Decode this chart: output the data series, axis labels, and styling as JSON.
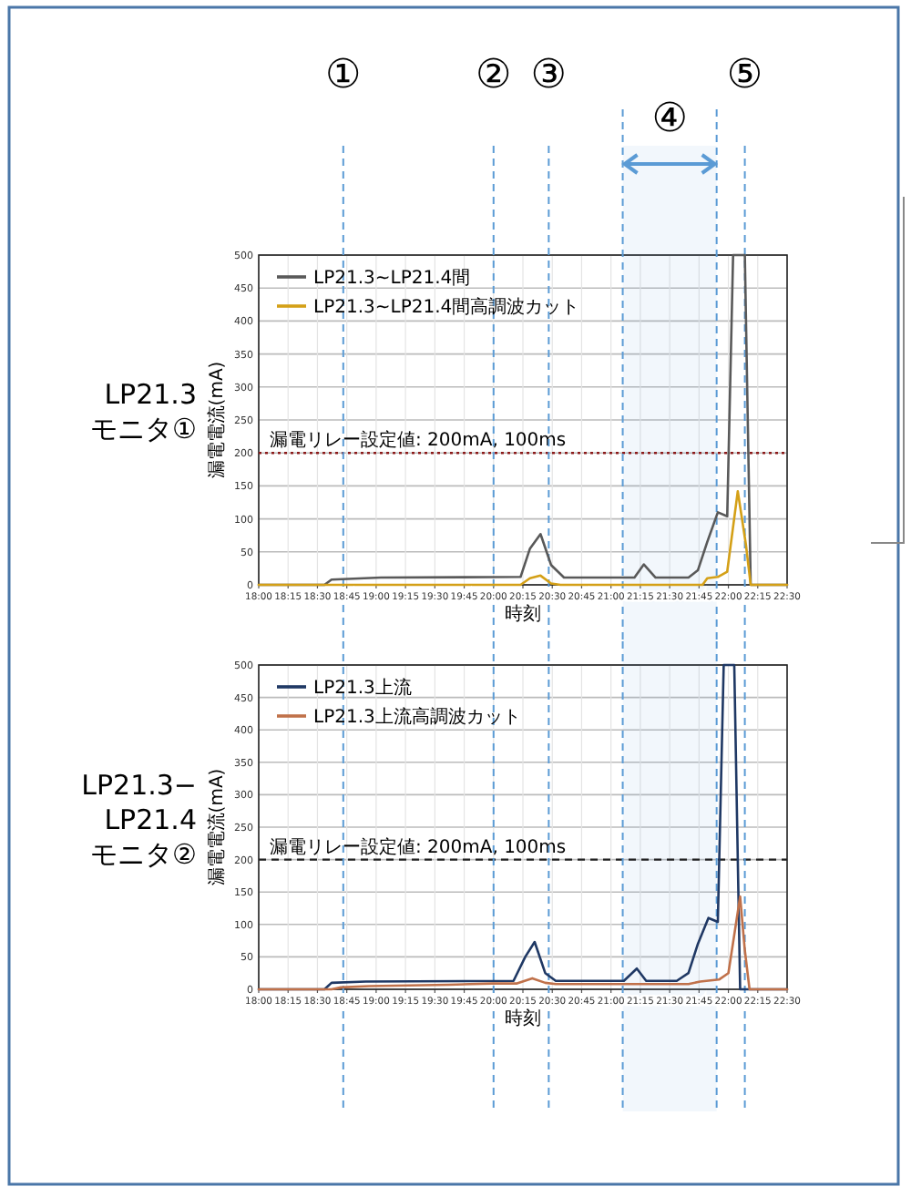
{
  "chart_data": [
    {
      "type": "line",
      "xlabel": "時刻",
      "ylabel": "漏電電流(mA)",
      "annotations": [
        "LP21.3 モニタ①"
      ],
      "xlim": [
        18,
        22.5
      ],
      "ylim": [
        0,
        500
      ],
      "yticks": [
        0,
        50,
        100,
        150,
        200,
        250,
        300,
        350,
        400,
        450,
        500
      ],
      "xticks": [
        {
          "value": 18,
          "label": "18:00"
        },
        {
          "value": 18.25,
          "label": "18:15"
        },
        {
          "value": 18.5,
          "label": "18:30"
        },
        {
          "value": 18.75,
          "label": "18:45"
        },
        {
          "value": 19,
          "label": "19:00"
        },
        {
          "value": 19.25,
          "label": "19:15"
        },
        {
          "value": 19.5,
          "label": "19:30"
        },
        {
          "value": 19.75,
          "label": "19:45"
        },
        {
          "value": 20,
          "label": "20:00"
        },
        {
          "value": 20.25,
          "label": "20:15"
        },
        {
          "value": 20.5,
          "label": "20:30"
        },
        {
          "value": 20.75,
          "label": "20:45"
        },
        {
          "value": 21,
          "label": "21:00"
        },
        {
          "value": 21.25,
          "label": "21:15"
        },
        {
          "value": 21.5,
          "label": "21:30"
        },
        {
          "value": 21.75,
          "label": "21:45"
        },
        {
          "value": 22,
          "label": "22:00"
        },
        {
          "value": 22.25,
          "label": "22:15"
        },
        {
          "value": 22.5,
          "label": "22:30"
        }
      ],
      "grid": true,
      "legend": "top left",
      "series": [
        {
          "name": "LP21.3~LP21.4間",
          "color": "#595959",
          "x": [
            18,
            18.56,
            18.62,
            19.04,
            20.23,
            20.31,
            20.4,
            20.49,
            20.6,
            21.2,
            21.28,
            21.38,
            21.66,
            21.74,
            21.82,
            21.91,
            21.99,
            22.04,
            22.14,
            22.19,
            22.5
          ],
          "values": [
            0,
            0,
            8,
            11,
            12,
            55,
            77,
            30,
            11,
            11,
            31,
            11,
            11,
            22,
            65,
            110,
            104,
            500,
            500,
            0,
            0
          ]
        },
        {
          "name": "LP21.3~LP21.4間高調波カット",
          "color": "#d4a017",
          "x": [
            18,
            20.23,
            20.31,
            20.4,
            20.49,
            20.57,
            21.78,
            21.82,
            21.91,
            21.99,
            22.08,
            22.15,
            22.19,
            22.5
          ],
          "values": [
            0,
            0,
            10,
            14,
            2,
            0,
            0,
            10,
            12,
            20,
            142,
            60,
            0,
            0
          ]
        }
      ],
      "ref_lines": [
        {
          "axis": "y",
          "value": 200,
          "label": "漏電リレー設定値: 200mA, 100ms",
          "color": "#8b1a1a",
          "line_style": "dotted"
        },
        {
          "axis": "x",
          "value": 18.72,
          "label": "①",
          "color": "#5b9bd5",
          "line_style": "dashed"
        },
        {
          "axis": "x",
          "value": 20,
          "label": "②",
          "color": "#5b9bd5",
          "line_style": "dashed"
        },
        {
          "axis": "x",
          "value": 20.47,
          "label": "③",
          "color": "#5b9bd5",
          "line_style": "dashed"
        },
        {
          "axis": "x",
          "value": 22.14,
          "label": "⑤",
          "color": "#5b9bd5",
          "line_style": "dashed"
        },
        {
          "axis": "x",
          "value": 21.1,
          "color": "#5b9bd5",
          "line_style": "dashed"
        },
        {
          "axis": "x",
          "value": 21.9,
          "color": "#5b9bd5",
          "line_style": "dashed"
        }
      ],
      "bands": [
        {
          "axis": "x",
          "from": 21.1,
          "to": 21.9,
          "label": "④",
          "color": "#5b9bd5"
        }
      ]
    },
    {
      "type": "line",
      "xlabel": "時刻",
      "ylabel": "漏電電流(mA)",
      "annotations": [
        "LP21.3− LP21.4 モニタ②"
      ],
      "xlim": [
        18,
        22.5
      ],
      "ylim": [
        0,
        500
      ],
      "yticks": [
        0,
        50,
        100,
        150,
        200,
        250,
        300,
        350,
        400,
        450,
        500
      ],
      "xticks": [
        {
          "value": 18,
          "label": "18:00"
        },
        {
          "value": 18.25,
          "label": "18:15"
        },
        {
          "value": 18.5,
          "label": "18:30"
        },
        {
          "value": 18.75,
          "label": "18:45"
        },
        {
          "value": 19,
          "label": "19:00"
        },
        {
          "value": 19.25,
          "label": "19:15"
        },
        {
          "value": 19.5,
          "label": "19:30"
        },
        {
          "value": 19.75,
          "label": "19:45"
        },
        {
          "value": 20,
          "label": "20:00"
        },
        {
          "value": 20.25,
          "label": "20:15"
        },
        {
          "value": 20.5,
          "label": "20:30"
        },
        {
          "value": 20.75,
          "label": "20:45"
        },
        {
          "value": 21,
          "label": "21:00"
        },
        {
          "value": 21.25,
          "label": "21:15"
        },
        {
          "value": 21.5,
          "label": "21:30"
        },
        {
          "value": 21.75,
          "label": "21:45"
        },
        {
          "value": 22,
          "label": "22:00"
        },
        {
          "value": 22.25,
          "label": "22:15"
        },
        {
          "value": 22.5,
          "label": "22:30"
        }
      ],
      "grid": true,
      "legend": "top left",
      "series": [
        {
          "name": "LP21.3上流",
          "color": "#1f3864",
          "x": [
            18,
            18.56,
            18.62,
            18.91,
            20.17,
            20.27,
            20.35,
            20.44,
            20.53,
            21.11,
            21.22,
            21.3,
            21.56,
            21.66,
            21.74,
            21.83,
            21.91,
            21.96,
            22.05,
            22.1,
            22.5
          ],
          "values": [
            0,
            0,
            10,
            12,
            13,
            50,
            73,
            25,
            13,
            13,
            32,
            13,
            13,
            25,
            70,
            110,
            104,
            500,
            500,
            0,
            0
          ]
        },
        {
          "name": "LP21.3上流高調波カット",
          "color": "#c0714a",
          "x": [
            18,
            18.62,
            18.7,
            18.94,
            19.62,
            19.99,
            20.2,
            20.33,
            20.44,
            20.53,
            21.66,
            21.76,
            21.92,
            22.0,
            22.1,
            22.14,
            22.18,
            22.5
          ],
          "values": [
            0,
            0,
            3,
            5,
            7,
            9,
            9,
            17,
            10,
            8,
            8,
            12,
            15,
            25,
            143,
            60,
            0,
            0
          ]
        }
      ],
      "ref_lines": [
        {
          "axis": "y",
          "value": 200,
          "label": "漏電リレー設定値: 200mA, 100ms",
          "color": "#222222",
          "line_style": "dashed"
        },
        {
          "axis": "x",
          "value": 18.72,
          "color": "#5b9bd5",
          "line_style": "dashed"
        },
        {
          "axis": "x",
          "value": 20,
          "color": "#5b9bd5",
          "line_style": "dashed"
        },
        {
          "axis": "x",
          "value": 20.47,
          "color": "#5b9bd5",
          "line_style": "dashed"
        },
        {
          "axis": "x",
          "value": 22.14,
          "color": "#5b9bd5",
          "line_style": "dashed"
        },
        {
          "axis": "x",
          "value": 21.1,
          "color": "#5b9bd5",
          "line_style": "dashed"
        },
        {
          "axis": "x",
          "value": 21.9,
          "color": "#5b9bd5",
          "line_style": "dashed"
        }
      ],
      "bands": [
        {
          "axis": "x",
          "from": 21.1,
          "to": 21.9,
          "color": "#5b9bd5"
        }
      ]
    }
  ]
}
